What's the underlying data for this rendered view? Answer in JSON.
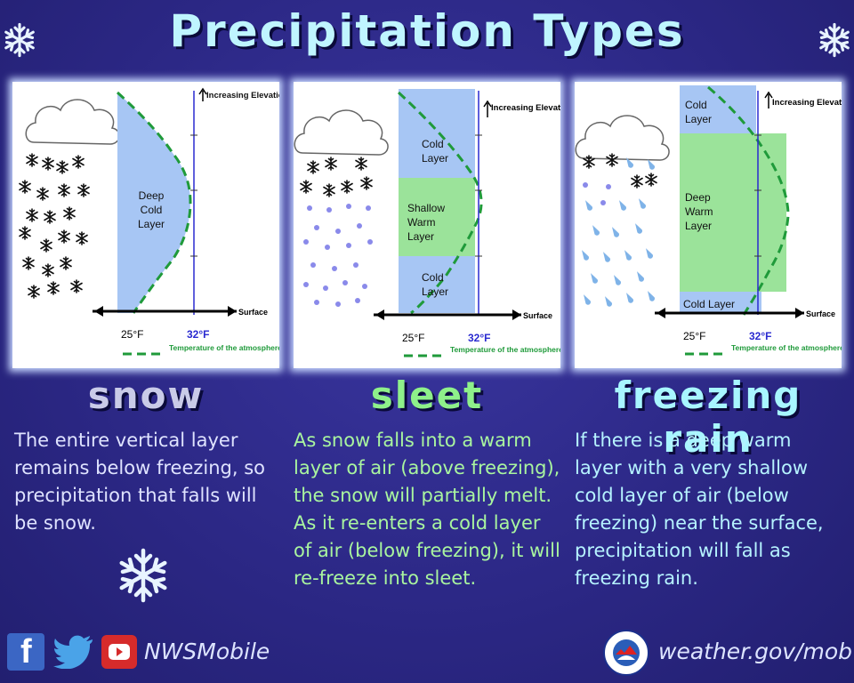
{
  "title": "Precipitation Types",
  "panels": [
    {
      "heading": "snow",
      "heading_color": "#c9cbe8",
      "description": "The entire vertical layer remains below freezing, so precipitation that falls will be snow.",
      "desc_color": "#dfe3ff",
      "layers": [
        "Deep Cold Layer"
      ]
    },
    {
      "heading": "sleet",
      "heading_color": "#8ef08a",
      "description": "As snow falls into a warm layer of air (above freezing), the snow will partially melt. As it re-enters a cold layer of air (below freezing), it will re-freeze into sleet.",
      "desc_color": "#a9f59f",
      "layers": [
        "Cold Layer",
        "Shallow Warm Layer",
        "Cold Layer"
      ]
    },
    {
      "heading": "freezing rain",
      "heading_color": "#a8f6ff",
      "description": "If there is a deep warm layer with a very shallow cold layer of air (below freezing) near the surface, precipitation will fall as freezing rain.",
      "desc_color": "#b6f3ff",
      "layers": [
        "Cold Layer",
        "Deep Warm Layer",
        "Cold Layer"
      ]
    }
  ],
  "diagram_labels": {
    "increasing_elevation": "Increasing Elevation",
    "surface": "Surface",
    "temp_25": "25°F",
    "temp_32": "32°F",
    "legend": "Temperature of the atmosphere"
  },
  "footer": {
    "social_handle": "NWSMobile",
    "website": "weather.gov/mob"
  },
  "colors": {
    "cold": "#a7c6f4",
    "warm": "#9be39a",
    "freezing_line": "#2a2ad0",
    "temp_profile": "#1f9a3a"
  }
}
